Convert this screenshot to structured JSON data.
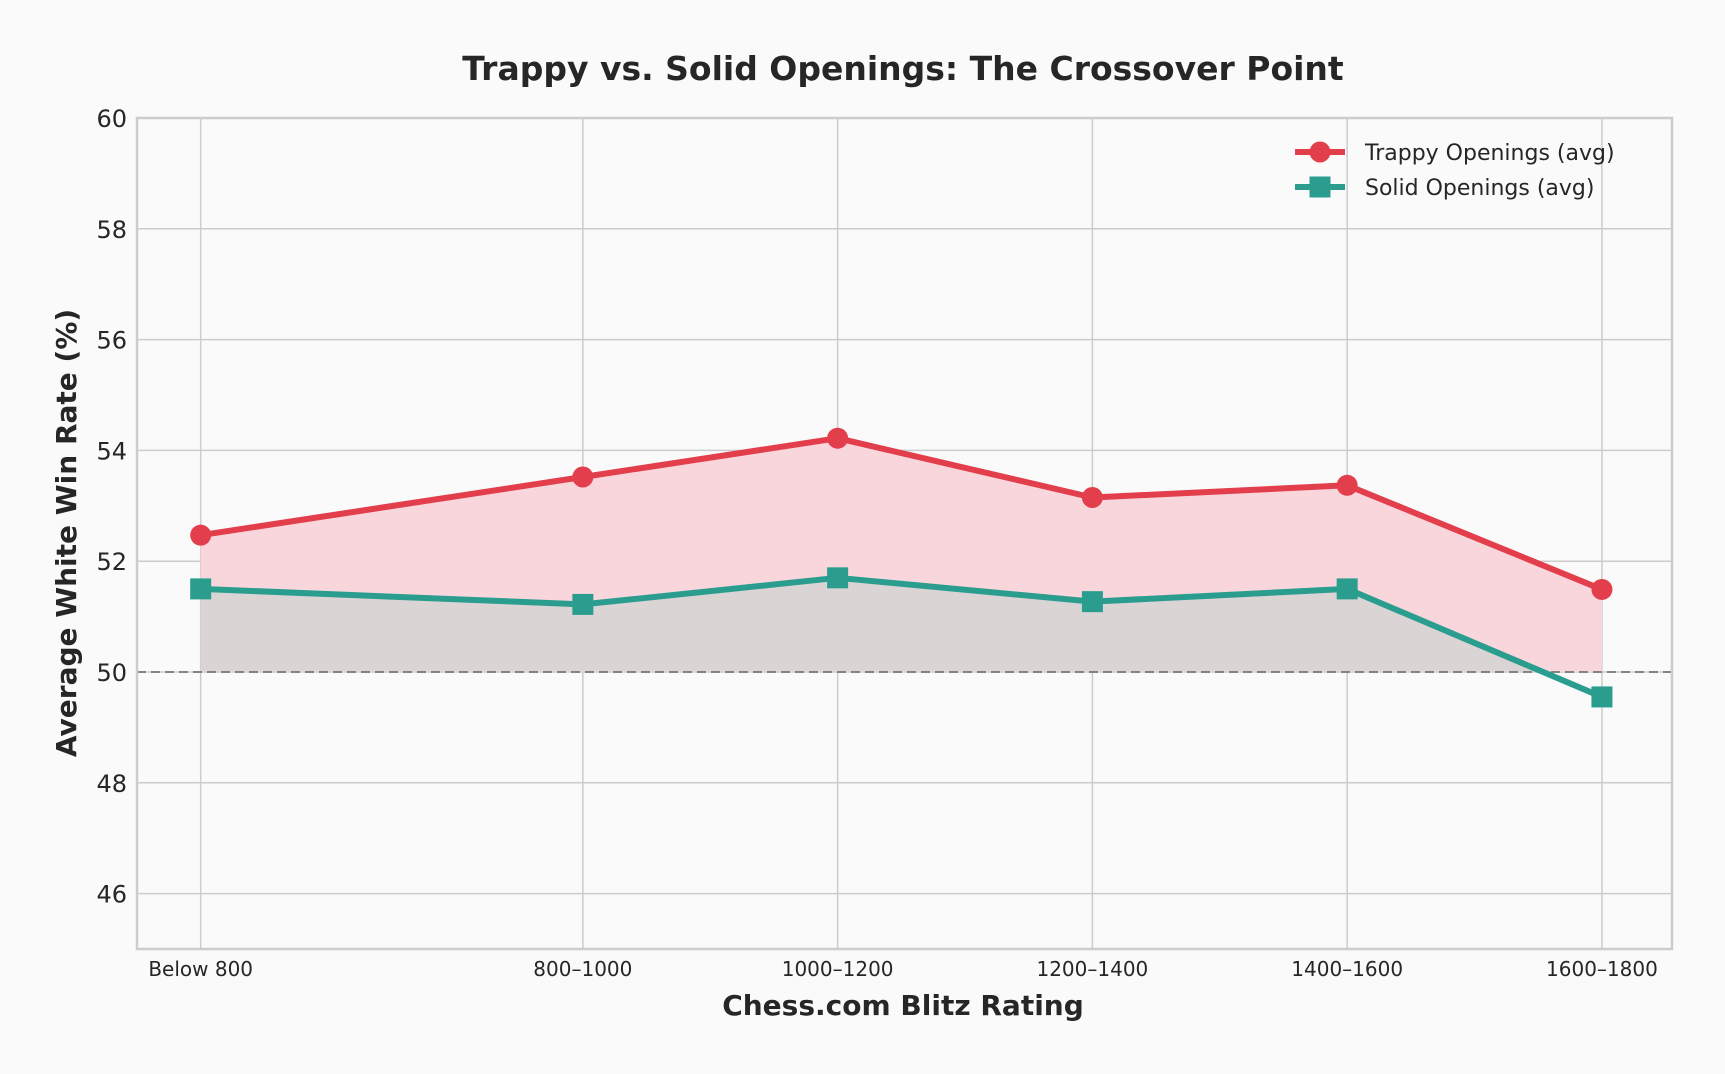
{
  "chart_data": {
    "type": "line",
    "title": "Trappy vs. Solid Openings: The Crossover Point",
    "xlabel": "Chess.com Blitz Rating",
    "ylabel": "Average White Win Rate (%)",
    "categories": [
      "Below 800",
      "800–1000",
      "1000–1200",
      "1200–1400",
      "1400–1600",
      "1600–1800"
    ],
    "x_positions": [
      700,
      1000,
      1200,
      1400,
      1600,
      1800
    ],
    "xlim": [
      650,
      1855
    ],
    "ylim": [
      45,
      60
    ],
    "yticks": [
      46,
      48,
      50,
      52,
      54,
      56,
      58,
      60
    ],
    "baseline": 50,
    "grid": true,
    "legend_position": "top-right",
    "series": [
      {
        "name": "Trappy Openings (avg)",
        "values": [
          52.47,
          53.52,
          54.22,
          53.15,
          53.37,
          51.49
        ],
        "color": "#e23e4b",
        "fill_color": "#f8d6dc",
        "marker": "circle"
      },
      {
        "name": "Solid Openings (avg)",
        "values": [
          51.5,
          51.22,
          51.7,
          51.27,
          51.5,
          49.55
        ],
        "color": "#2a9d8f",
        "fill_color": "#d8d4d4",
        "marker": "square"
      }
    ]
  }
}
